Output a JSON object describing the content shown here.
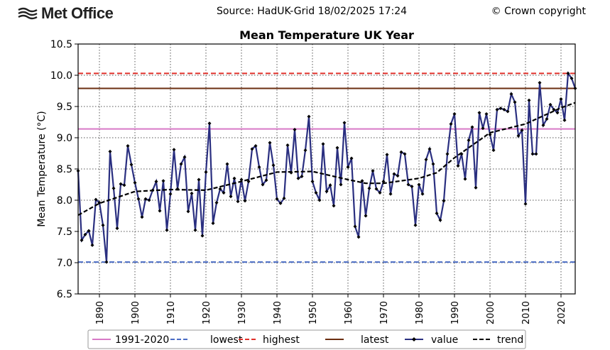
{
  "header": {
    "logo_text": "Met Office",
    "source": "Source: HadUK-Grid 18/02/2025 17:24",
    "copyright": "© Crown copyright"
  },
  "chart_data": {
    "type": "line",
    "title": "Mean Temperature UK Year",
    "ylabel": "Mean Temperature (°C)",
    "xlabel": "",
    "ylim": [
      6.5,
      10.5
    ],
    "xlim": [
      1884,
      2024
    ],
    "grid": true,
    "legend_position": "bottom",
    "yticks": [
      "6.5",
      "7.0",
      "7.5",
      "8.0",
      "8.5",
      "9.0",
      "9.5",
      "10.0",
      "10.5"
    ],
    "xticks": [
      "1890",
      "1900",
      "1910",
      "1920",
      "1930",
      "1940",
      "1950",
      "1960",
      "1970",
      "1980",
      "1990",
      "2000",
      "2010",
      "2020"
    ],
    "legend": [
      {
        "label": "1991-2020",
        "color": "#d879c6",
        "style": "solid"
      },
      {
        "label": "lowest",
        "color": "#4a6cc4",
        "style": "dashed"
      },
      {
        "label": "highest",
        "color": "#e0302a",
        "style": "dashed"
      },
      {
        "label": "latest",
        "color": "#6b2e10",
        "style": "solid"
      },
      {
        "label": "value",
        "color": "#2a2f80",
        "style": "marker"
      },
      {
        "label": "trend",
        "color": "#000000",
        "style": "dashed"
      }
    ],
    "reference_lines": {
      "avg_1991_2020": 9.14,
      "lowest": 7.01,
      "highest": 10.03,
      "latest": 9.79
    },
    "series": [
      {
        "name": "value",
        "color": "#2a2f80",
        "x": [
          1884,
          1885,
          1886,
          1887,
          1888,
          1889,
          1890,
          1891,
          1892,
          1893,
          1894,
          1895,
          1896,
          1897,
          1898,
          1899,
          1900,
          1901,
          1902,
          1903,
          1904,
          1905,
          1906,
          1907,
          1908,
          1909,
          1910,
          1911,
          1912,
          1913,
          1914,
          1915,
          1916,
          1917,
          1918,
          1919,
          1920,
          1921,
          1922,
          1923,
          1924,
          1925,
          1926,
          1927,
          1928,
          1929,
          1930,
          1931,
          1932,
          1933,
          1934,
          1935,
          1936,
          1937,
          1938,
          1939,
          1940,
          1941,
          1942,
          1943,
          1944,
          1945,
          1946,
          1947,
          1948,
          1949,
          1950,
          1951,
          1952,
          1953,
          1954,
          1955,
          1956,
          1957,
          1958,
          1959,
          1960,
          1961,
          1962,
          1963,
          1964,
          1965,
          1966,
          1967,
          1968,
          1969,
          1970,
          1971,
          1972,
          1973,
          1974,
          1975,
          1976,
          1977,
          1978,
          1979,
          1980,
          1981,
          1982,
          1983,
          1984,
          1985,
          1986,
          1987,
          1988,
          1989,
          1990,
          1991,
          1992,
          1993,
          1994,
          1995,
          1996,
          1997,
          1998,
          1999,
          2000,
          2001,
          2002,
          2003,
          2004,
          2005,
          2006,
          2007,
          2008,
          2009,
          2010,
          2011,
          2012,
          2013,
          2014,
          2015,
          2016,
          2017,
          2018,
          2019,
          2020,
          2021,
          2022,
          2023,
          2024
        ],
        "values": [
          8.47,
          7.36,
          7.45,
          7.51,
          7.28,
          8.01,
          7.96,
          7.6,
          7.01,
          8.78,
          8.19,
          7.55,
          8.26,
          8.24,
          8.87,
          8.57,
          8.28,
          8.02,
          7.73,
          8.02,
          8.0,
          8.16,
          8.3,
          7.83,
          8.31,
          7.52,
          8.1,
          8.81,
          8.18,
          8.58,
          8.69,
          7.82,
          8.11,
          7.52,
          8.33,
          7.43,
          8.45,
          9.23,
          7.63,
          7.96,
          8.18,
          8.12,
          8.58,
          8.06,
          8.35,
          7.98,
          8.33,
          7.99,
          8.3,
          8.82,
          8.87,
          8.53,
          8.25,
          8.32,
          8.92,
          8.56,
          8.02,
          7.95,
          8.03,
          8.88,
          8.44,
          9.13,
          8.35,
          8.38,
          8.8,
          9.34,
          8.3,
          8.12,
          8.0,
          8.9,
          8.14,
          8.24,
          7.91,
          8.84,
          8.25,
          9.24,
          8.53,
          8.67,
          7.58,
          7.41,
          8.31,
          7.75,
          8.19,
          8.47,
          8.18,
          8.12,
          8.3,
          8.73,
          8.1,
          8.42,
          8.39,
          8.77,
          8.74,
          8.25,
          8.22,
          7.6,
          8.25,
          8.1,
          8.65,
          8.82,
          8.58,
          7.79,
          7.68,
          7.99,
          8.74,
          9.22,
          9.38,
          8.55,
          8.74,
          8.34,
          8.96,
          9.17,
          8.2,
          9.4,
          9.15,
          9.38,
          9.05,
          8.8,
          9.45,
          9.47,
          9.45,
          9.42,
          9.7,
          9.57,
          9.03,
          9.12,
          7.94,
          9.6,
          8.74,
          8.74,
          9.88,
          9.2,
          9.3,
          9.53,
          9.45,
          9.4,
          9.62,
          9.28,
          10.03,
          9.95,
          9.79
        ]
      },
      {
        "name": "trend",
        "color": "#000000",
        "x": [
          1884,
          1890,
          1900,
          1910,
          1920,
          1930,
          1940,
          1950,
          1960,
          1965,
          1970,
          1980,
          1985,
          1990,
          2000,
          2010,
          2020,
          2024
        ],
        "values": [
          7.76,
          7.95,
          8.14,
          8.17,
          8.16,
          8.3,
          8.45,
          8.46,
          8.33,
          8.27,
          8.27,
          8.35,
          8.44,
          8.68,
          9.08,
          9.22,
          9.48,
          9.56
        ]
      }
    ]
  }
}
